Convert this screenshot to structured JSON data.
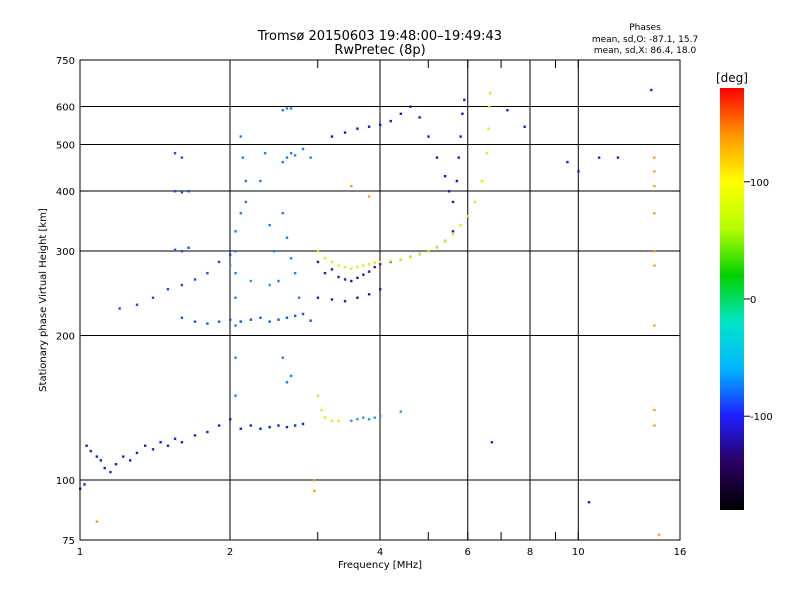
{
  "chart_data": {
    "type": "scatter",
    "title": "Tromsø 20150603 19:48:00–19:49:43",
    "subtitle": "RwPretec (8p)",
    "stats": {
      "heading": "Phases",
      "line_o": "mean, sd,O: -87.1, 15.7",
      "line_x": "mean, sd,X: 86.4, 18.0"
    },
    "xlabel": "Frequency [MHz]",
    "ylabel": "Stationary phase Virtual Height [km]",
    "xscale": "log",
    "yscale": "log",
    "xlim": [
      1,
      16
    ],
    "ylim": [
      75,
      750
    ],
    "grid": true,
    "xticks": [
      1,
      2,
      4,
      6,
      8,
      10,
      16
    ],
    "xtick_labels": [
      "1",
      "2",
      "4",
      "6",
      "8",
      "10",
      "16"
    ],
    "xgrid": [
      2,
      4,
      6,
      8,
      10
    ],
    "xminor": [
      3,
      5,
      7,
      9
    ],
    "yticks": [
      75,
      100,
      200,
      300,
      400,
      500,
      600,
      750
    ],
    "ytick_labels": [
      "75",
      "100",
      "200",
      "300",
      "400",
      "500",
      "600",
      "750"
    ],
    "ygrid": [
      100,
      200,
      300,
      400,
      500,
      600
    ],
    "colorbar": {
      "label": "[deg]",
      "range": [
        -180,
        180
      ],
      "ticks": [
        -100,
        0,
        100
      ],
      "tick_labels": [
        "-100",
        "0",
        "100"
      ],
      "stops": [
        "#000000",
        "#2a0060",
        "#1e1eff",
        "#00b4ff",
        "#00e6c8",
        "#00d200",
        "#b4ff00",
        "#ffff00",
        "#ff9600",
        "#ff0000"
      ]
    },
    "series": [
      {
        "color": "#0a2ad0",
        "points": [
          [
            1.0,
            96
          ],
          [
            1.02,
            98
          ],
          [
            1.03,
            118
          ],
          [
            1.05,
            115
          ],
          [
            1.08,
            112
          ],
          [
            1.1,
            110
          ],
          [
            1.12,
            106
          ],
          [
            1.15,
            104
          ],
          [
            1.18,
            108
          ],
          [
            1.22,
            112
          ],
          [
            1.26,
            110
          ],
          [
            1.3,
            114
          ],
          [
            1.35,
            118
          ],
          [
            1.4,
            116
          ],
          [
            1.45,
            120
          ],
          [
            1.5,
            118
          ],
          [
            1.55,
            122
          ],
          [
            1.6,
            120
          ],
          [
            1.7,
            124
          ],
          [
            1.8,
            126
          ],
          [
            1.9,
            130
          ],
          [
            2.0,
            134
          ],
          [
            2.1,
            128
          ],
          [
            2.2,
            130
          ],
          [
            2.3,
            128
          ],
          [
            2.4,
            129
          ],
          [
            2.5,
            130
          ],
          [
            2.6,
            129
          ],
          [
            2.7,
            130
          ],
          [
            2.8,
            131
          ]
        ]
      },
      {
        "color": "#1650e0",
        "points": [
          [
            1.2,
            228
          ],
          [
            1.3,
            232
          ],
          [
            1.4,
            240
          ],
          [
            1.5,
            250
          ],
          [
            1.6,
            255
          ],
          [
            1.7,
            262
          ],
          [
            1.8,
            270
          ],
          [
            1.9,
            285
          ],
          [
            2.0,
            295
          ],
          [
            1.55,
            302
          ],
          [
            1.6,
            300
          ],
          [
            1.65,
            305
          ],
          [
            1.55,
            400
          ],
          [
            1.6,
            398
          ],
          [
            1.65,
            400
          ],
          [
            1.55,
            480
          ],
          [
            1.6,
            470
          ]
        ]
      },
      {
        "color": "#0a58e6",
        "points": [
          [
            1.6,
            218
          ],
          [
            1.7,
            214
          ],
          [
            1.8,
            212
          ],
          [
            1.9,
            214
          ],
          [
            2.0,
            216
          ],
          [
            2.1,
            214
          ],
          [
            2.2,
            216
          ],
          [
            2.3,
            218
          ],
          [
            2.4,
            214
          ],
          [
            2.5,
            216
          ],
          [
            2.6,
            218
          ],
          [
            2.7,
            220
          ],
          [
            2.8,
            222
          ],
          [
            2.9,
            215
          ]
        ]
      },
      {
        "color": "#1c7ff0",
        "points": [
          [
            2.05,
            150
          ],
          [
            2.05,
            180
          ],
          [
            2.05,
            210
          ],
          [
            2.05,
            240
          ],
          [
            2.05,
            270
          ],
          [
            2.05,
            300
          ],
          [
            2.05,
            330
          ],
          [
            2.1,
            360
          ],
          [
            2.15,
            380
          ],
          [
            2.15,
            420
          ],
          [
            2.12,
            470
          ],
          [
            2.1,
            520
          ],
          [
            2.3,
            420
          ],
          [
            2.35,
            480
          ],
          [
            2.4,
            340
          ],
          [
            2.45,
            300
          ],
          [
            2.5,
            260
          ],
          [
            2.55,
            360
          ],
          [
            2.6,
            320
          ],
          [
            2.65,
            290
          ],
          [
            2.7,
            270
          ],
          [
            2.75,
            240
          ],
          [
            2.55,
            180
          ],
          [
            2.6,
            160
          ],
          [
            2.65,
            165
          ],
          [
            2.55,
            460
          ],
          [
            2.6,
            470
          ],
          [
            2.65,
            480
          ],
          [
            2.7,
            475
          ],
          [
            2.8,
            490
          ],
          [
            2.9,
            470
          ],
          [
            2.55,
            590
          ],
          [
            2.6,
            595
          ],
          [
            2.65,
            595
          ]
        ]
      },
      {
        "color": "#3a10b0",
        "points": [
          [
            3.0,
            285
          ],
          [
            3.1,
            270
          ],
          [
            3.2,
            275
          ],
          [
            3.3,
            265
          ],
          [
            3.4,
            262
          ],
          [
            3.5,
            260
          ],
          [
            3.6,
            264
          ],
          [
            3.7,
            268
          ],
          [
            3.8,
            272
          ],
          [
            3.9,
            278
          ],
          [
            4.0,
            282
          ],
          [
            4.2,
            285
          ],
          [
            4.4,
            288
          ],
          [
            4.6,
            292
          ],
          [
            4.8,
            296
          ],
          [
            5.0,
            300
          ],
          [
            5.2,
            306
          ],
          [
            5.4,
            315
          ],
          [
            5.6,
            330
          ],
          [
            3.0,
            240
          ],
          [
            3.2,
            238
          ],
          [
            3.4,
            236
          ],
          [
            3.6,
            240
          ],
          [
            3.8,
            244
          ],
          [
            4.0,
            250
          ]
        ]
      },
      {
        "color": "#1020c8",
        "points": [
          [
            3.2,
            520
          ],
          [
            3.4,
            530
          ],
          [
            3.6,
            540
          ],
          [
            3.8,
            545
          ],
          [
            4.0,
            550
          ],
          [
            4.2,
            560
          ],
          [
            4.4,
            580
          ],
          [
            4.6,
            600
          ],
          [
            4.8,
            570
          ],
          [
            5.0,
            520
          ],
          [
            5.2,
            470
          ],
          [
            5.4,
            430
          ],
          [
            5.5,
            400
          ],
          [
            5.6,
            380
          ],
          [
            5.7,
            420
          ],
          [
            5.75,
            470
          ],
          [
            5.8,
            520
          ],
          [
            5.85,
            580
          ],
          [
            5.9,
            620
          ]
        ]
      },
      {
        "color": "#e0f000",
        "points": [
          [
            3.0,
            300
          ],
          [
            3.1,
            290
          ],
          [
            3.2,
            285
          ],
          [
            3.3,
            280
          ],
          [
            3.4,
            278
          ],
          [
            3.5,
            276
          ],
          [
            3.6,
            278
          ],
          [
            3.7,
            280
          ],
          [
            3.8,
            282
          ],
          [
            3.9,
            284
          ],
          [
            4.0,
            285
          ],
          [
            4.2,
            286
          ],
          [
            4.4,
            288
          ],
          [
            4.6,
            292
          ],
          [
            4.8,
            296
          ],
          [
            5.0,
            300
          ],
          [
            5.2,
            306
          ],
          [
            5.4,
            315
          ],
          [
            5.6,
            325
          ],
          [
            5.8,
            340
          ],
          [
            6.0,
            355
          ],
          [
            6.2,
            380
          ],
          [
            6.4,
            420
          ],
          [
            6.55,
            480
          ],
          [
            6.6,
            540
          ],
          [
            6.62,
            600
          ],
          [
            6.65,
            640
          ],
          [
            3.0,
            150
          ],
          [
            3.05,
            140
          ],
          [
            3.1,
            135
          ],
          [
            3.2,
            133
          ],
          [
            3.3,
            133
          ]
        ]
      },
      {
        "color": "#2a9ad8",
        "points": [
          [
            3.5,
            133
          ],
          [
            3.6,
            134
          ],
          [
            3.7,
            135
          ],
          [
            3.8,
            134
          ],
          [
            3.9,
            135
          ],
          [
            4.0,
            136
          ],
          [
            4.4,
            139
          ],
          [
            2.0,
            280
          ],
          [
            2.2,
            260
          ],
          [
            2.4,
            255
          ]
        ]
      },
      {
        "color": "#ffa000",
        "points": [
          [
            14.2,
            470
          ],
          [
            14.2,
            440
          ],
          [
            14.2,
            410
          ],
          [
            14.2,
            360
          ],
          [
            14.2,
            300
          ],
          [
            14.2,
            280
          ],
          [
            14.2,
            210
          ],
          [
            14.2,
            140
          ],
          [
            14.2,
            130
          ],
          [
            14.5,
            77
          ],
          [
            2.95,
            100
          ],
          [
            2.95,
            95
          ],
          [
            3.5,
            410
          ],
          [
            3.8,
            390
          ],
          [
            1.08,
            82
          ]
        ]
      },
      {
        "color": "#0030d0",
        "points": [
          [
            9.5,
            460
          ],
          [
            10.0,
            440
          ],
          [
            11.0,
            470
          ],
          [
            12.0,
            470
          ],
          [
            10.5,
            90
          ],
          [
            6.7,
            120
          ],
          [
            7.2,
            590
          ],
          [
            7.8,
            545
          ],
          [
            14.0,
            650
          ]
        ]
      }
    ]
  }
}
